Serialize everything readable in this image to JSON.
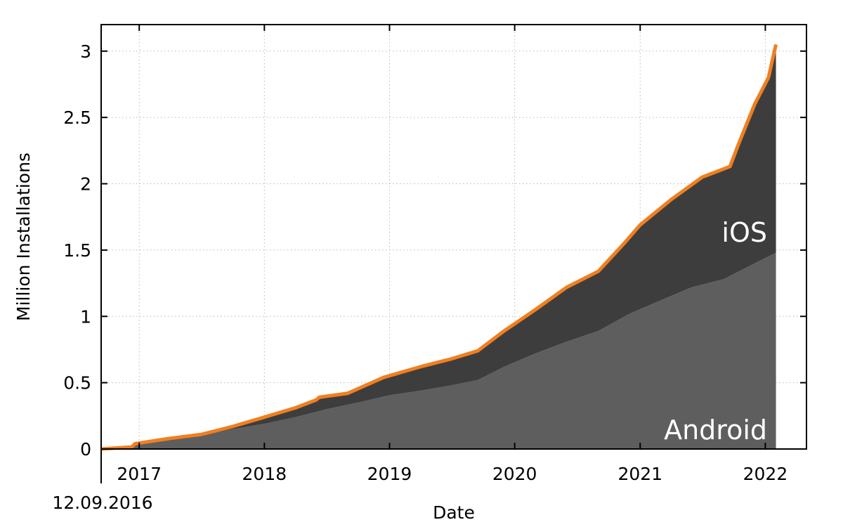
{
  "chart_data": {
    "type": "area",
    "stacked": true,
    "xlabel": "Date",
    "ylabel": "Million Installations",
    "ylim": [
      0,
      3.2
    ],
    "xlim": [
      "2016-09-12",
      "2022-05-01"
    ],
    "yticks": [
      0,
      0.5,
      1,
      1.5,
      2,
      2.5,
      3
    ],
    "ytick_labels": [
      "0",
      "0.5",
      "1",
      "1.5",
      "2",
      "2.5",
      "3"
    ],
    "xticks": [
      "2017-01-01",
      "2018-01-01",
      "2019-01-01",
      "2020-01-01",
      "2021-01-01",
      "2022-01-01"
    ],
    "xtick_labels": [
      "2017",
      "2018",
      "2019",
      "2020",
      "2021",
      "2022"
    ],
    "start_label": "12.09.2016",
    "grid": true,
    "series": [
      {
        "name": "Android",
        "color": "#5e5e5e",
        "points": [
          [
            "2016-09-12",
            0
          ],
          [
            "2016-12-15",
            0.015
          ],
          [
            "2016-12-20",
            0.03
          ],
          [
            "2017-04-01",
            0.07
          ],
          [
            "2017-07-01",
            0.1
          ],
          [
            "2017-10-01",
            0.15
          ],
          [
            "2018-01-01",
            0.19
          ],
          [
            "2018-04-01",
            0.24
          ],
          [
            "2018-07-01",
            0.3
          ],
          [
            "2018-10-01",
            0.35
          ],
          [
            "2019-01-01",
            0.405
          ],
          [
            "2019-04-01",
            0.44
          ],
          [
            "2019-07-01",
            0.48
          ],
          [
            "2019-09-15",
            0.52
          ],
          [
            "2019-12-01",
            0.62
          ],
          [
            "2020-03-01",
            0.72
          ],
          [
            "2020-06-01",
            0.81
          ],
          [
            "2020-09-01",
            0.89
          ],
          [
            "2020-12-01",
            1.02
          ],
          [
            "2021-03-01",
            1.12
          ],
          [
            "2021-06-01",
            1.22
          ],
          [
            "2021-09-01",
            1.28
          ],
          [
            "2021-12-01",
            1.4
          ],
          [
            "2022-02-01",
            1.48
          ]
        ]
      },
      {
        "name": "iOS",
        "color": "#3d3d3d",
        "total_points": [
          [
            "2016-09-12",
            0
          ],
          [
            "2016-12-10",
            0.015
          ],
          [
            "2016-12-20",
            0.04
          ],
          [
            "2017-04-01",
            0.08
          ],
          [
            "2017-07-01",
            0.11
          ],
          [
            "2017-10-01",
            0.17
          ],
          [
            "2018-01-01",
            0.24
          ],
          [
            "2018-04-01",
            0.31
          ],
          [
            "2018-06-01",
            0.37
          ],
          [
            "2018-06-10",
            0.39
          ],
          [
            "2018-09-01",
            0.42
          ],
          [
            "2018-12-15",
            0.54
          ],
          [
            "2019-04-01",
            0.62
          ],
          [
            "2019-07-01",
            0.68
          ],
          [
            "2019-09-15",
            0.74
          ],
          [
            "2019-12-01",
            0.89
          ],
          [
            "2020-03-01",
            1.05
          ],
          [
            "2020-06-01",
            1.22
          ],
          [
            "2020-09-01",
            1.34
          ],
          [
            "2020-11-15",
            1.55
          ],
          [
            "2021-01-01",
            1.69
          ],
          [
            "2021-04-01",
            1.88
          ],
          [
            "2021-07-01",
            2.05
          ],
          [
            "2021-09-20",
            2.13
          ],
          [
            "2021-10-15",
            2.3
          ],
          [
            "2021-12-01",
            2.6
          ],
          [
            "2022-01-10",
            2.8
          ],
          [
            "2022-02-01",
            3.05
          ]
        ]
      }
    ],
    "total_line_color": "#f07f20"
  }
}
